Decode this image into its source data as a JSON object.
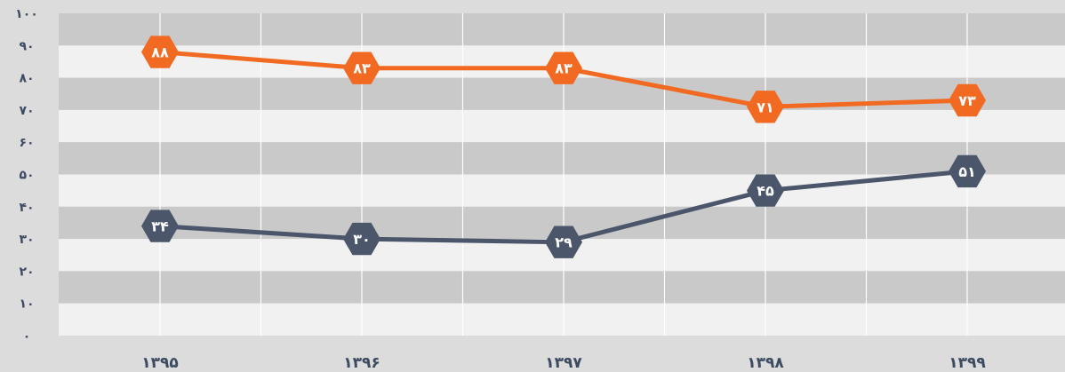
{
  "chart_data": {
    "type": "line",
    "title": "",
    "xlabel": "",
    "ylabel": "",
    "categories": [
      "۱۳۹۵",
      "۱۳۹۶",
      "۱۳۹۷",
      "۱۳۹۸",
      "۱۳۹۹"
    ],
    "ylim": [
      0,
      100
    ],
    "y_ticks": [
      "۰",
      "۱۰",
      "۲۰",
      "۳۰",
      "۴۰",
      "۵۰",
      "۶۰",
      "۷۰",
      "۸۰",
      "۹۰",
      "۱۰۰"
    ],
    "grid": true,
    "legend": "none",
    "series": [
      {
        "color": "#f26a21",
        "values": [
          88,
          83,
          83,
          71,
          73
        ],
        "labels": [
          "۸۸",
          "۸۳",
          "۸۳",
          "۷۱",
          "۷۳"
        ]
      },
      {
        "color": "#4b566a",
        "values": [
          34,
          30,
          29,
          45,
          51
        ],
        "labels": [
          "۳۴",
          "۳۰",
          "۲۹",
          "۴۵",
          "۵۱"
        ]
      }
    ],
    "colors": {
      "band_dark": "#c9c9c9",
      "band_light": "#f1f1f1",
      "background": "#dcdcdc",
      "tick_text": "#3d4b62"
    }
  }
}
